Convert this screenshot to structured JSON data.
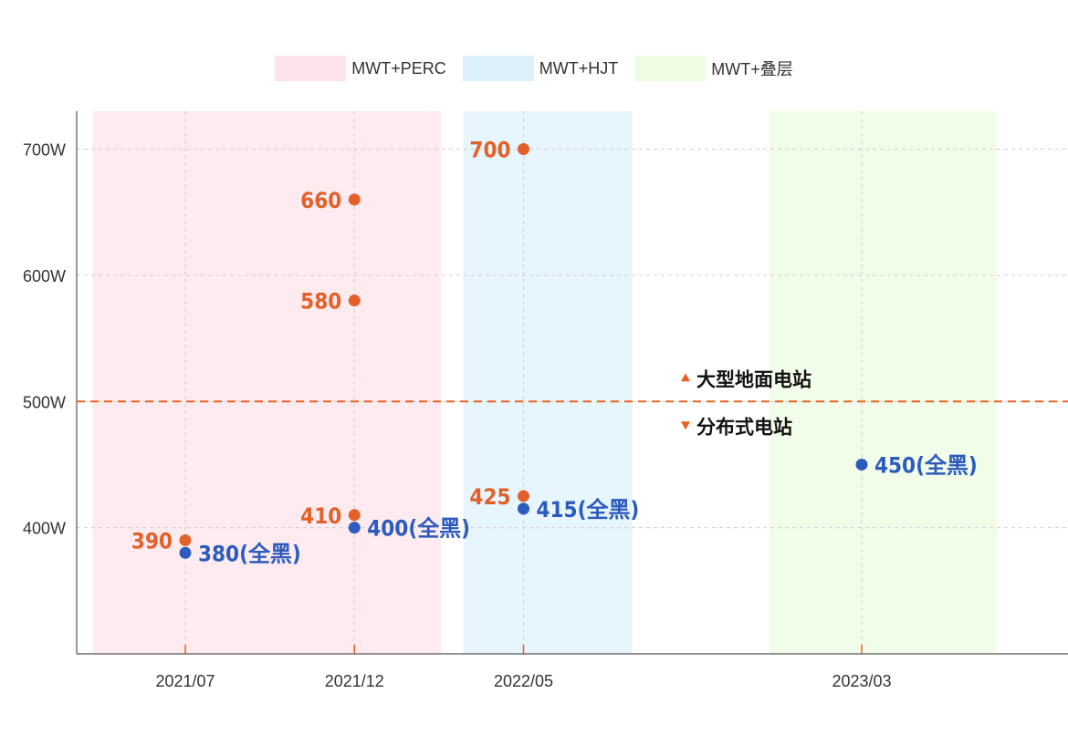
{
  "chart_data": {
    "type": "scatter",
    "title": "",
    "xlabel": "",
    "ylabel": "",
    "ylim": [
      300,
      730
    ],
    "x_categories": [
      "2021/07",
      "2021/12",
      "2022/05",
      "2023/03"
    ],
    "y_ticks": [
      {
        "value": 400,
        "label": "400W"
      },
      {
        "value": 500,
        "label": "500W"
      },
      {
        "value": 600,
        "label": "600W"
      },
      {
        "value": 700,
        "label": "700W"
      }
    ],
    "grid": true,
    "legend": {
      "placement": "top-center",
      "items": [
        {
          "label": "MWT+PERC",
          "color": "#fde4ea"
        },
        {
          "label": "MWT+HJT",
          "color": "#dcf0fb"
        },
        {
          "label": "MWT+叠层",
          "color": "#edfce3"
        }
      ]
    },
    "bands": [
      {
        "name": "MWT+PERC",
        "from_date": "2021/04",
        "to_date": "2022/03",
        "color": "#fdebef"
      },
      {
        "name": "MWT+HJT",
        "from_date": "2022/03",
        "to_date": "2022/08",
        "color": "#e7f5fc"
      },
      {
        "name": "MWT+叠层",
        "from_date": "2022/12",
        "to_date": "2023/07",
        "color": "#f1fde9"
      }
    ],
    "threshold": {
      "value": 500,
      "color": "#e8621f",
      "above_label": "大型地面电站",
      "below_label": "分布式电站"
    },
    "series": [
      {
        "color": "#e2612a",
        "points": [
          {
            "x": "2021/07",
            "y": 390,
            "label": "390"
          },
          {
            "x": "2021/12",
            "y": 410,
            "label": "410"
          },
          {
            "x": "2021/12",
            "y": 580,
            "label": "580"
          },
          {
            "x": "2021/12",
            "y": 660,
            "label": "660"
          },
          {
            "x": "2022/05",
            "y": 425,
            "label": "425"
          },
          {
            "x": "2022/05",
            "y": 700,
            "label": "700"
          }
        ]
      },
      {
        "color": "#2c5bbd",
        "points": [
          {
            "x": "2021/07",
            "y": 380,
            "label": "380(全黑)"
          },
          {
            "x": "2021/12",
            "y": 400,
            "label": "400(全黑)"
          },
          {
            "x": "2022/05",
            "y": 415,
            "label": "415(全黑)"
          },
          {
            "x": "2023/03",
            "y": 450,
            "label": "450(全黑)"
          }
        ]
      }
    ]
  }
}
